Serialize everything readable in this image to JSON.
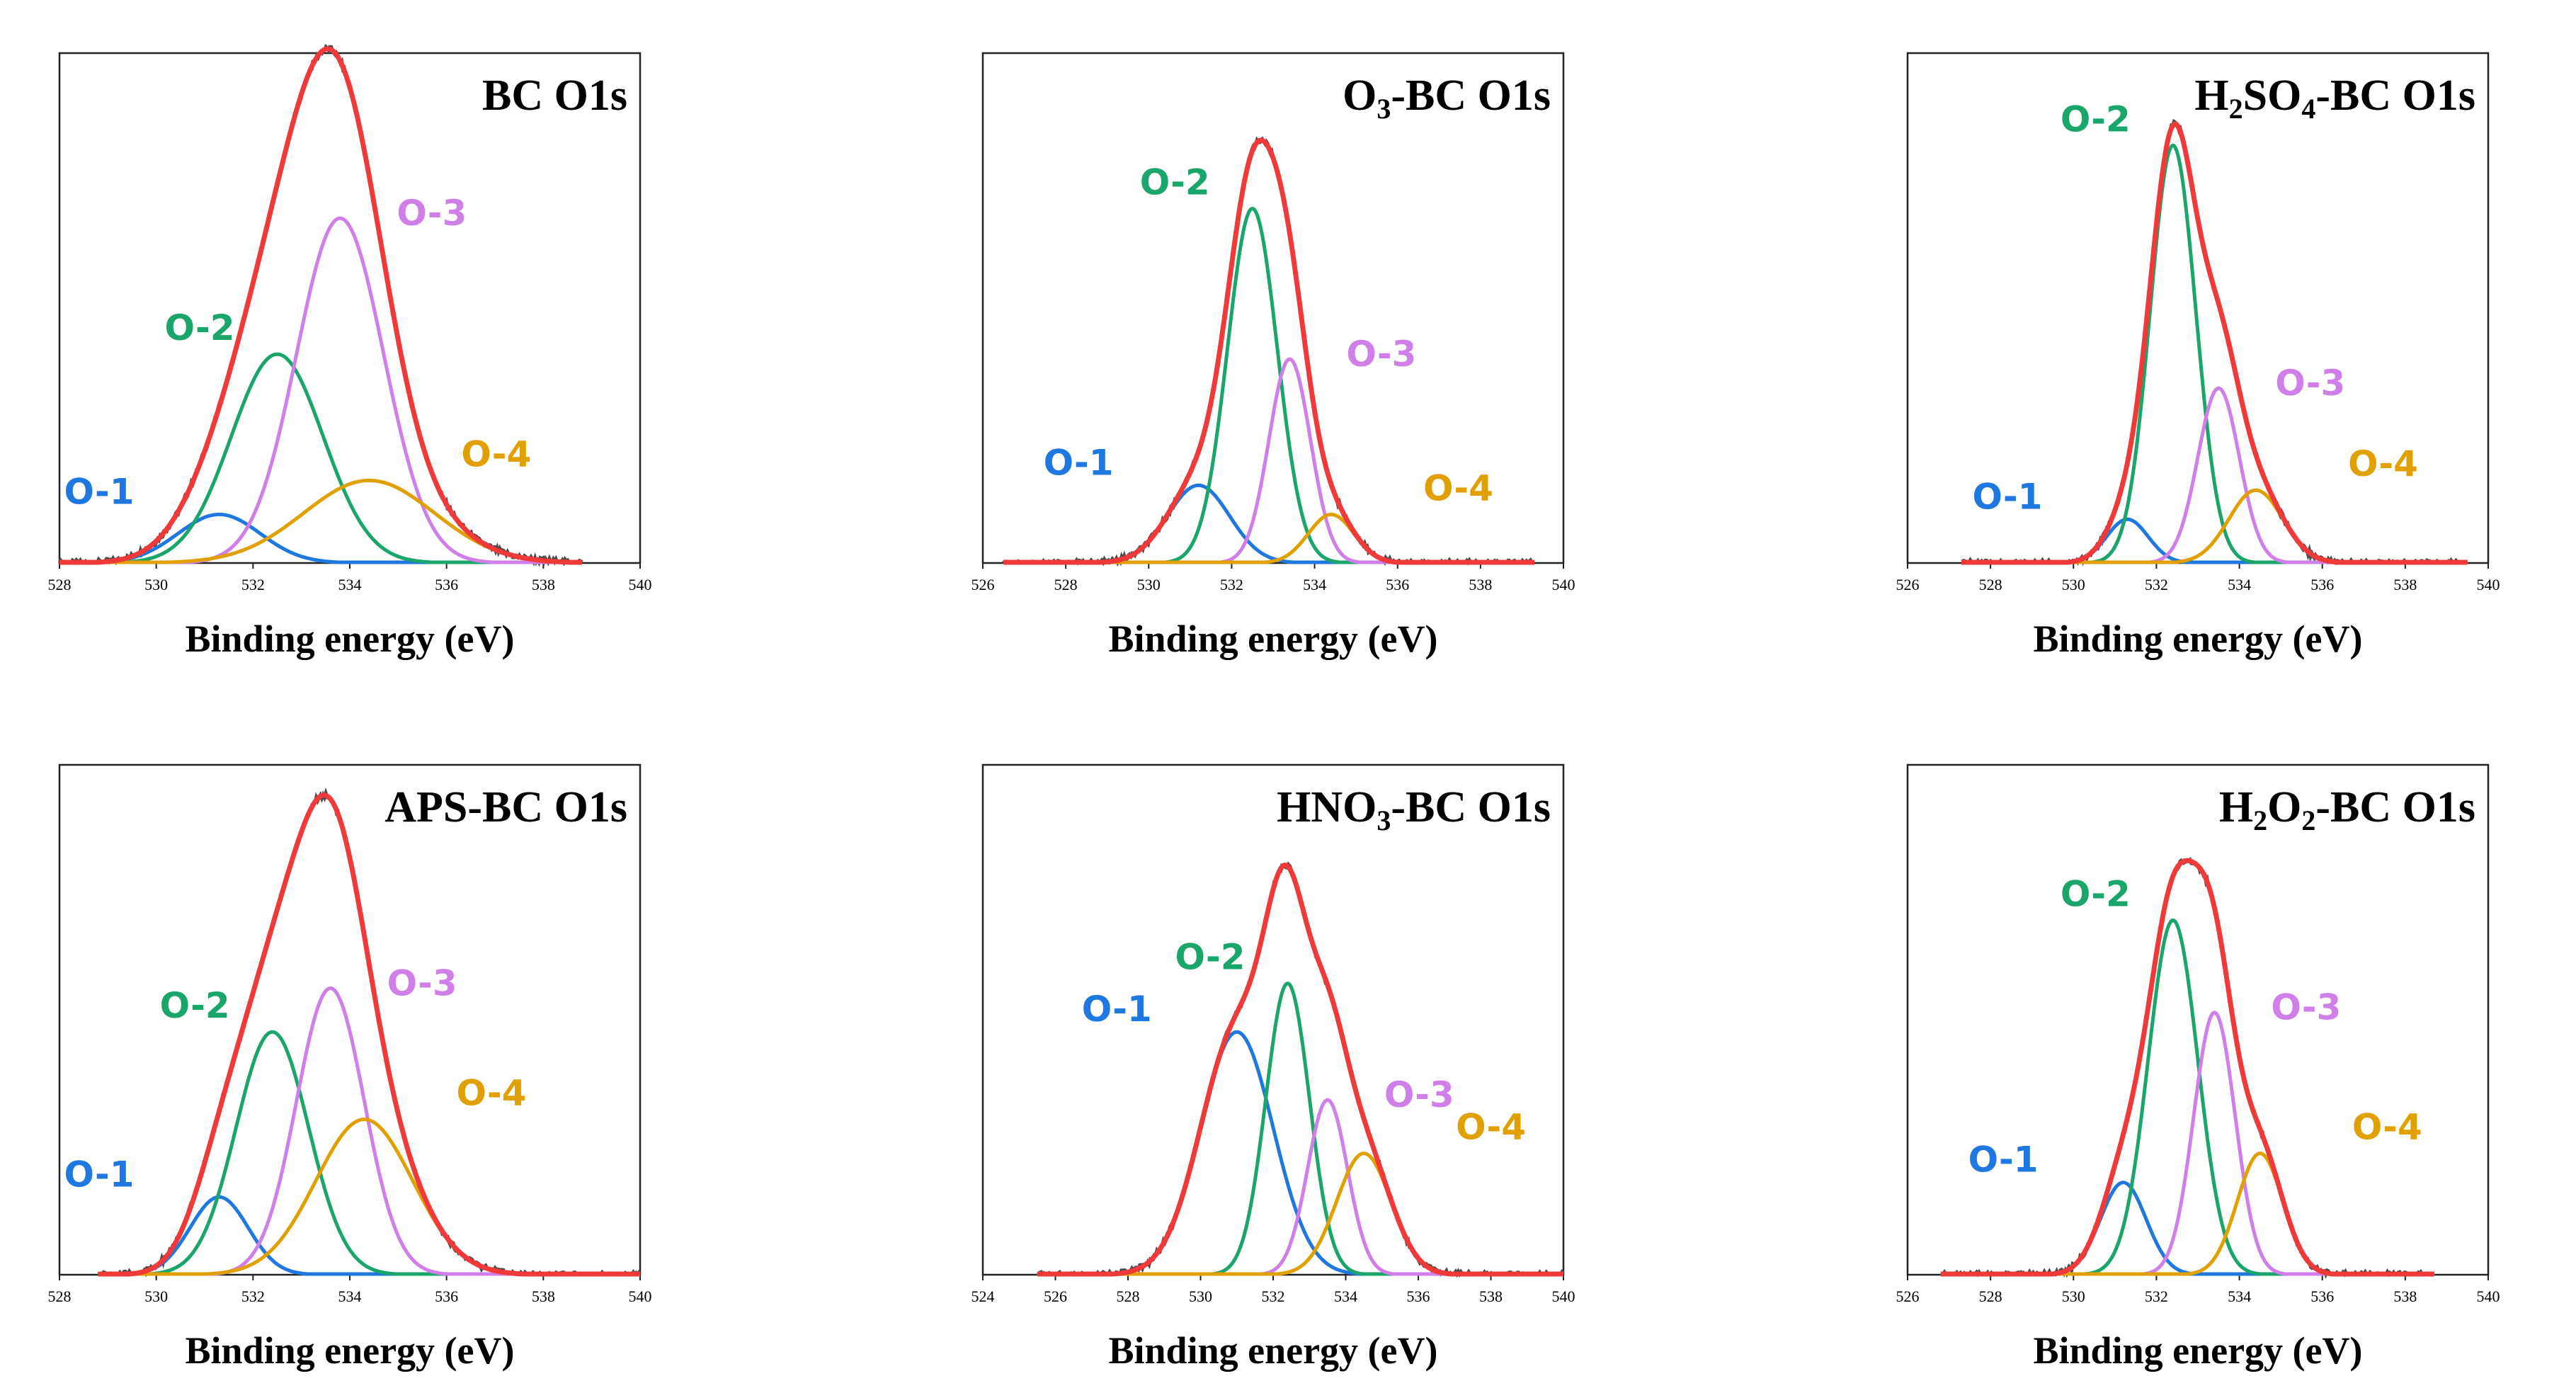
{
  "peak_colors": {
    "O-1": "#1f77e0",
    "O-2": "#1aa56a",
    "O-3": "#d07ee8",
    "O-4": "#e0a000",
    "envelope": "#f03a3a",
    "raw": "#4a4a4a"
  },
  "chart_data": [
    {
      "type": "line",
      "title_main": "BC O1s",
      "title_sub": "",
      "title_rest": "",
      "xlabel": "Binding energy (eV)",
      "ylabel": "",
      "xlim": [
        528,
        540
      ],
      "xticks": [
        "528",
        "530",
        "532",
        "534",
        "536",
        "538",
        "540"
      ],
      "ylim": [
        0,
        1.05
      ],
      "grid": false,
      "data_range": [
        528,
        538.8
      ],
      "series": [
        {
          "name": "O-1",
          "center": 531.3,
          "height": 0.1,
          "sigma": 0.85
        },
        {
          "name": "O-2",
          "center": 532.5,
          "height": 0.43,
          "sigma": 0.95
        },
        {
          "name": "O-3",
          "center": 533.8,
          "height": 0.71,
          "sigma": 0.9
        },
        {
          "name": "O-4",
          "center": 534.4,
          "height": 0.17,
          "sigma": 1.35
        }
      ],
      "peak_labels": [
        "O-1",
        "O-2",
        "O-3",
        "O-4"
      ]
    },
    {
      "type": "line",
      "title_main": "O",
      "title_sub": "3",
      "title_rest": "-BC O1s",
      "xlabel": "Binding energy (eV)",
      "ylabel": "",
      "xlim": [
        526,
        540
      ],
      "xticks": [
        "526",
        "528",
        "530",
        "532",
        "534",
        "536",
        "538",
        "540"
      ],
      "ylim": [
        0,
        1.05
      ],
      "grid": false,
      "data_range": [
        526.5,
        539.3
      ],
      "series": [
        {
          "name": "O-1",
          "center": 531.2,
          "height": 0.16,
          "sigma": 0.75
        },
        {
          "name": "O-2",
          "center": 532.5,
          "height": 0.73,
          "sigma": 0.6
        },
        {
          "name": "O-3",
          "center": 533.4,
          "height": 0.42,
          "sigma": 0.5
        },
        {
          "name": "O-4",
          "center": 534.4,
          "height": 0.1,
          "sigma": 0.55
        }
      ],
      "peak_labels": [
        "O-1",
        "O-2",
        "O-3",
        "O-4"
      ]
    },
    {
      "type": "line",
      "title_main": "H",
      "title_sub": "2",
      "title_rest": "SO",
      "title_sub2": "4",
      "title_rest2": "-BC O1s",
      "xlabel": "Binding energy (eV)",
      "ylabel": "",
      "xlim": [
        526,
        540
      ],
      "xticks": [
        "526",
        "528",
        "530",
        "532",
        "534",
        "536",
        "538",
        "540"
      ],
      "ylim": [
        0,
        1.05
      ],
      "grid": false,
      "data_range": [
        527.3,
        539.5
      ],
      "series": [
        {
          "name": "O-1",
          "center": 531.3,
          "height": 0.09,
          "sigma": 0.5
        },
        {
          "name": "O-2",
          "center": 532.4,
          "height": 0.86,
          "sigma": 0.55
        },
        {
          "name": "O-3",
          "center": 533.5,
          "height": 0.36,
          "sigma": 0.5
        },
        {
          "name": "O-4",
          "center": 534.4,
          "height": 0.15,
          "sigma": 0.65
        }
      ],
      "peak_labels": [
        "O-1",
        "O-2",
        "O-3",
        "O-4"
      ]
    },
    {
      "type": "line",
      "title_main": "APS-BC O1s",
      "title_sub": "",
      "title_rest": "",
      "xlabel": "Binding energy (eV)",
      "ylabel": "",
      "xlim": [
        528,
        540
      ],
      "xticks": [
        "528",
        "530",
        "532",
        "534",
        "536",
        "538",
        "540"
      ],
      "ylim": [
        0,
        1.05
      ],
      "grid": false,
      "data_range": [
        528.8,
        540
      ],
      "series": [
        {
          "name": "O-1",
          "center": 531.3,
          "height": 0.16,
          "sigma": 0.6
        },
        {
          "name": "O-2",
          "center": 532.4,
          "height": 0.5,
          "sigma": 0.75
        },
        {
          "name": "O-3",
          "center": 533.6,
          "height": 0.59,
          "sigma": 0.7
        },
        {
          "name": "O-4",
          "center": 534.3,
          "height": 0.32,
          "sigma": 1.0
        }
      ],
      "peak_labels": [
        "O-1",
        "O-2",
        "O-3",
        "O-4"
      ]
    },
    {
      "type": "line",
      "title_main": "HNO",
      "title_sub": "3",
      "title_rest": "-BC O1s",
      "xlabel": "Binding energy (eV)",
      "ylabel": "",
      "xlim": [
        524,
        540
      ],
      "xticks": [
        "524",
        "526",
        "528",
        "530",
        "532",
        "534",
        "536",
        "538",
        "540"
      ],
      "ylim": [
        0,
        1.05
      ],
      "grid": false,
      "data_range": [
        525.5,
        540
      ],
      "series": [
        {
          "name": "O-1",
          "center": 531.0,
          "height": 0.5,
          "sigma": 1.0
        },
        {
          "name": "O-2",
          "center": 532.4,
          "height": 0.6,
          "sigma": 0.6
        },
        {
          "name": "O-3",
          "center": 533.5,
          "height": 0.36,
          "sigma": 0.55
        },
        {
          "name": "O-4",
          "center": 534.5,
          "height": 0.25,
          "sigma": 0.75
        }
      ],
      "peak_labels": [
        "O-1",
        "O-2",
        "O-3",
        "O-4"
      ]
    },
    {
      "type": "line",
      "title_main": "H",
      "title_sub": "2",
      "title_rest": "O",
      "title_sub2": "2",
      "title_rest2": "-BC O1s",
      "xlabel": "Binding energy (eV)",
      "ylabel": "",
      "xlim": [
        526,
        540
      ],
      "xticks": [
        "526",
        "528",
        "530",
        "532",
        "534",
        "536",
        "538",
        "540"
      ],
      "ylim": [
        0,
        1.05
      ],
      "grid": false,
      "data_range": [
        526.8,
        538.7
      ],
      "series": [
        {
          "name": "O-1",
          "center": 531.2,
          "height": 0.19,
          "sigma": 0.55
        },
        {
          "name": "O-2",
          "center": 532.4,
          "height": 0.73,
          "sigma": 0.6
        },
        {
          "name": "O-3",
          "center": 533.4,
          "height": 0.54,
          "sigma": 0.5
        },
        {
          "name": "O-4",
          "center": 534.5,
          "height": 0.25,
          "sigma": 0.55
        }
      ],
      "peak_labels": [
        "O-1",
        "O-2",
        "O-3",
        "O-4"
      ]
    }
  ]
}
